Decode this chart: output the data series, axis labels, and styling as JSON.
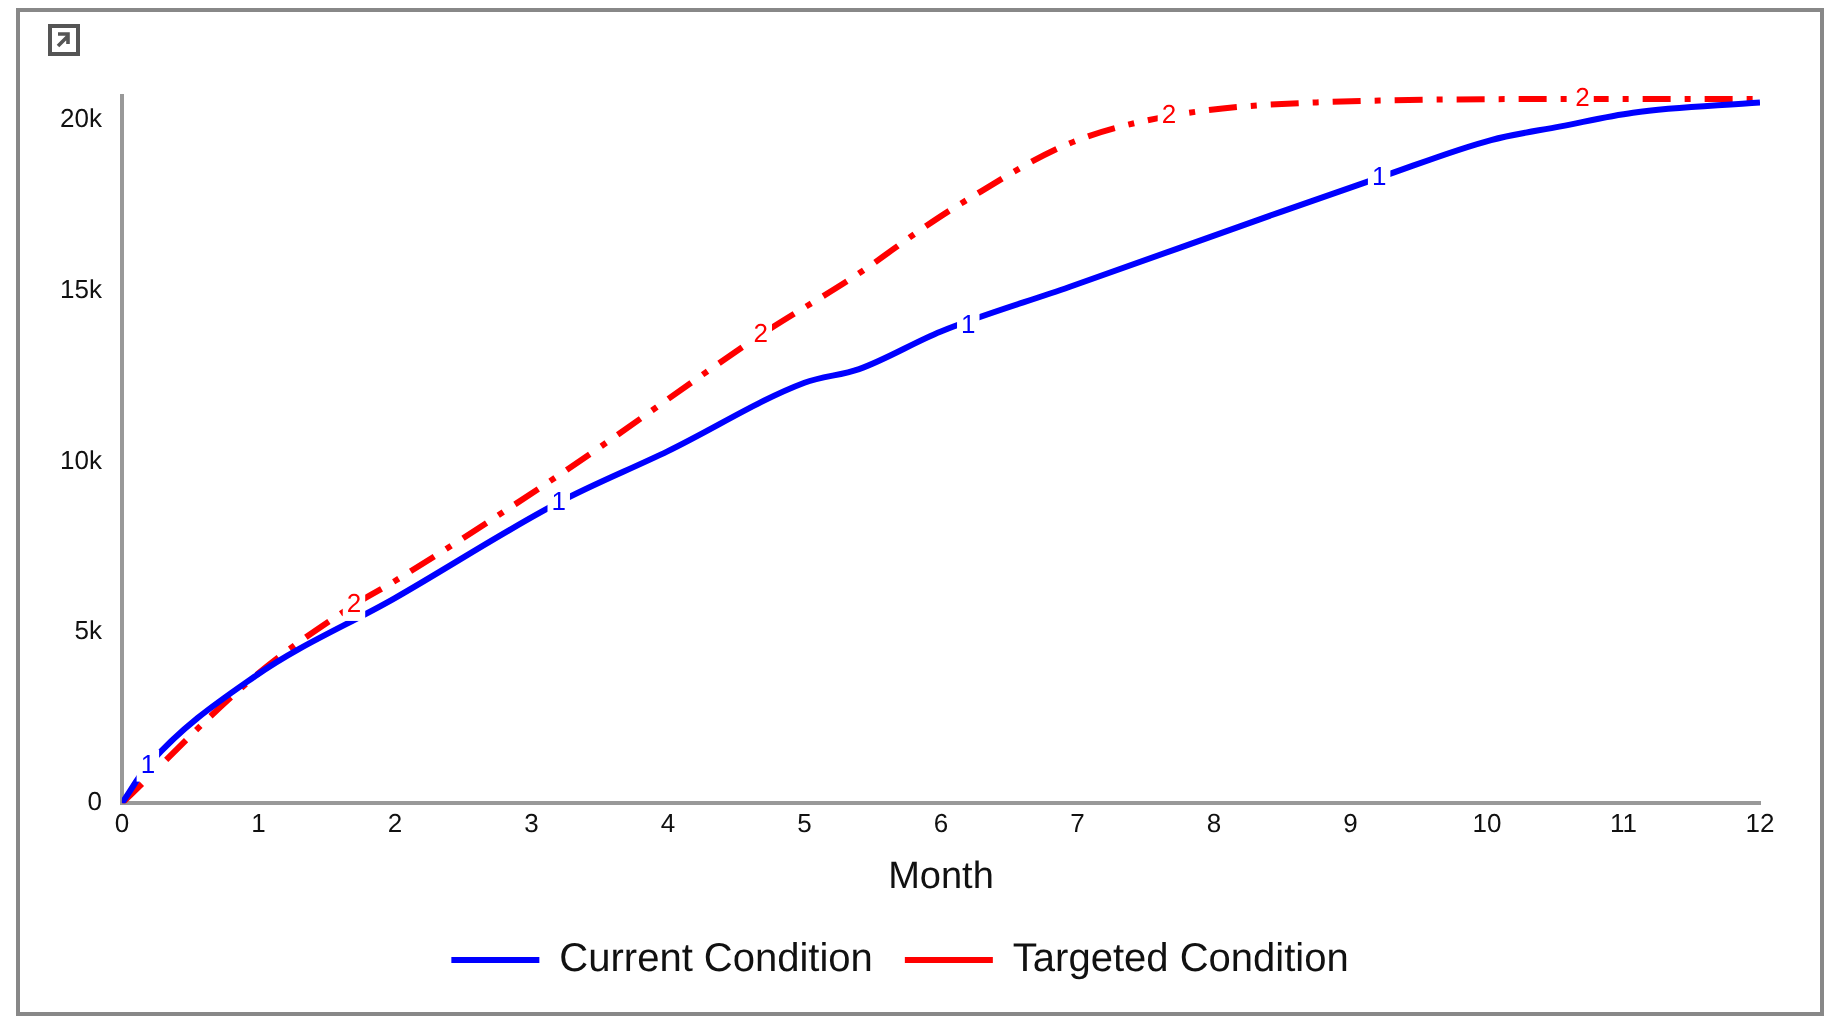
{
  "chart_data": {
    "type": "line",
    "xlabel": "Month",
    "xlim": [
      0,
      12
    ],
    "xticks": [
      0,
      1,
      2,
      3,
      4,
      5,
      6,
      7,
      8,
      9,
      10,
      11,
      12
    ],
    "ylim": [
      0,
      20700
    ],
    "yticks": [
      0,
      {
        "value": 5000,
        "label": "5k"
      },
      {
        "value": 10000,
        "label": "10k"
      },
      {
        "value": 15000,
        "label": "15k"
      },
      {
        "value": 20000,
        "label": "20k"
      }
    ],
    "grid": false,
    "legend": "bottom",
    "marker": "none",
    "series": [
      {
        "name": "Current Condition",
        "color": "#0000ff",
        "line_style": "solid",
        "x": [
          0,
          0.19,
          0.97,
          2.0,
          3.2,
          4.0,
          5.0,
          5.4,
          6.0,
          6.94,
          8.49,
          9.21,
          10.03,
          10.54,
          11.07,
          12
        ],
        "values": [
          0,
          1100,
          3700,
          6000,
          8800,
          10300,
          12300,
          12700,
          13800,
          15100,
          17300,
          18300,
          19400,
          19800,
          20200,
          20500
        ]
      },
      {
        "name": "Targeted Condition",
        "color": "#ff0000",
        "line_style": "dashed",
        "x": [
          0,
          0.97,
          1.7,
          2.0,
          3.24,
          4.68,
          5.4,
          5.86,
          6.17,
          6.94,
          7.67,
          8.75,
          10.7,
          12
        ],
        "values": [
          0,
          3700,
          5800,
          6500,
          9700,
          13700,
          15500,
          16800,
          17600,
          19300,
          20100,
          20500,
          20600,
          20600
        ]
      }
    ],
    "annotations": [
      {
        "text": "1",
        "x": 0.19,
        "y": 1100
      },
      {
        "text": "1",
        "x": 3.2,
        "y": 8800
      },
      {
        "text": "1",
        "x": 6.2,
        "y": 13950
      },
      {
        "text": "1",
        "x": 9.21,
        "y": 18300
      },
      {
        "text": "2",
        "x": 1.7,
        "y": 5800
      },
      {
        "text": "2",
        "x": 4.68,
        "y": 13700
      },
      {
        "text": "2",
        "x": 7.67,
        "y": 20100
      },
      {
        "text": "2",
        "x": 10.7,
        "y": 20600
      }
    ]
  }
}
